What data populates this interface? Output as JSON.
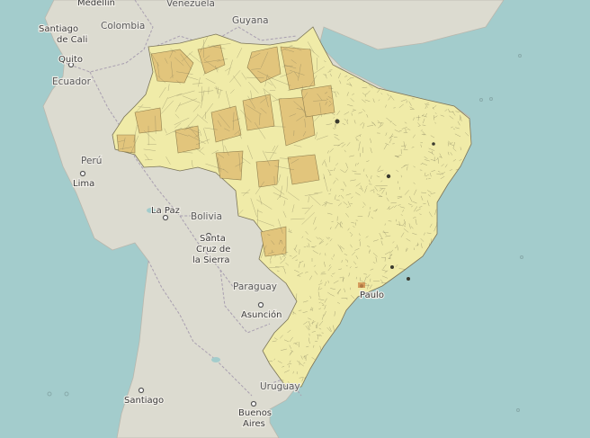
{
  "map": {
    "colors": {
      "ocean": "#a3cccc",
      "land": "#dcdbd0",
      "brazil_fill": "#f0eba8",
      "brazil_large_municipality": "#e2c47a",
      "border": "#a99fb0",
      "municipal_line": "#7b7558"
    },
    "labels": {
      "medellin": "Medellín",
      "venezuela": "Venezuela",
      "guyana": "Guyana",
      "santiago_de_cali_1": "Santiago",
      "santiago_de_cali_2": "de Cali",
      "colombia": "Colombia",
      "quito": "Quito",
      "ecuador": "Ecuador",
      "peru": "Perú",
      "lima": "Lima",
      "la_paz": "La Paz",
      "bolivia": "Bolivia",
      "santa_cruz_1": "Santa",
      "santa_cruz_2": "Cruz de",
      "santa_cruz_3": "la Sierra",
      "paraguay": "Paraguay",
      "asuncion": "Asunción",
      "sao_paulo": "Paulo",
      "santiago": "Santiago",
      "uruguay": "Uruguay",
      "buenos_aires_1": "Buenos",
      "buenos_aires_2": "Aires"
    }
  }
}
